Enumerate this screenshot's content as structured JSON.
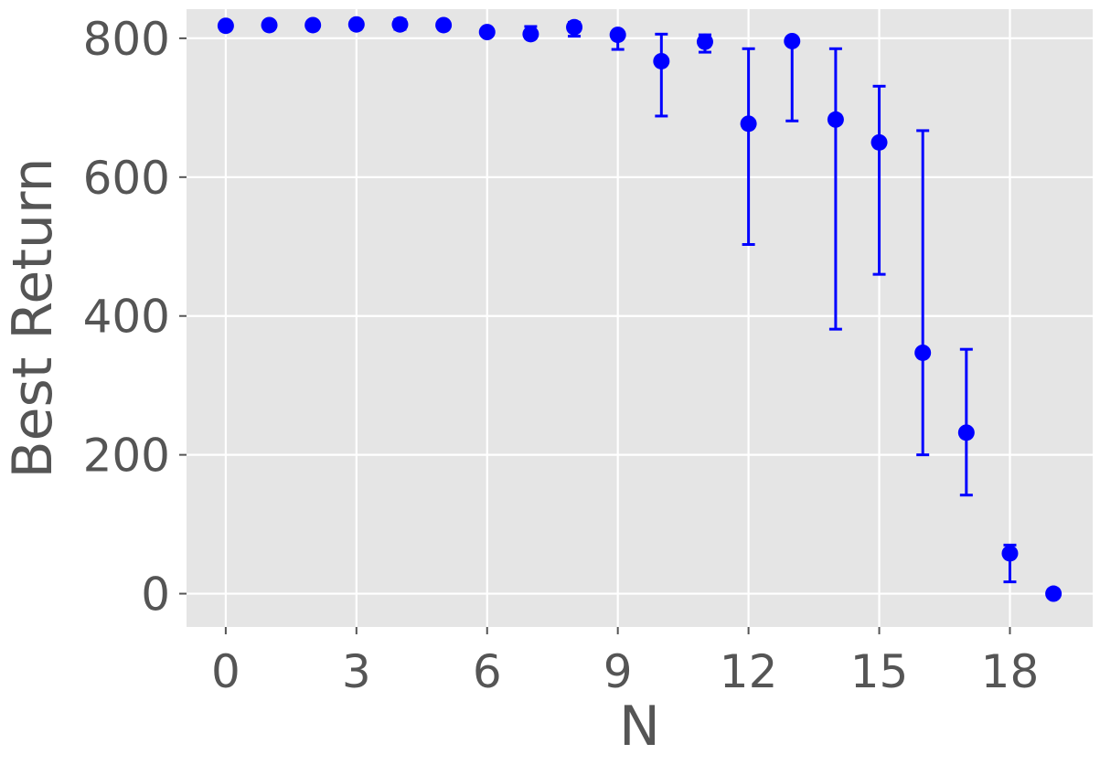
{
  "chart_data": {
    "type": "scatter",
    "title": "",
    "xlabel": "N",
    "ylabel": "Best Return",
    "xlim": [
      -0.9,
      19.9
    ],
    "ylim": [
      -48,
      842
    ],
    "xticks": [
      0,
      3,
      6,
      9,
      12,
      15,
      18
    ],
    "yticks": [
      0,
      200,
      400,
      600,
      800
    ],
    "grid": true,
    "background": "#e5e5e5",
    "grid_color": "#ffffff",
    "marker_color": "#0000ff",
    "series": [
      {
        "x": [
          0,
          1,
          2,
          3,
          4,
          5,
          6,
          7,
          8,
          9,
          10,
          11,
          12,
          13,
          14,
          15,
          16,
          17,
          18,
          19
        ],
        "y": [
          818,
          819,
          819,
          820,
          820,
          819,
          809,
          806,
          816,
          805,
          767,
          795,
          677,
          796,
          683,
          650,
          347,
          232,
          58,
          0
        ],
        "y_low": [
          818,
          819,
          817,
          816,
          813,
          819,
          809,
          803,
          803,
          784,
          688,
          780,
          503,
          681,
          381,
          460,
          200,
          142,
          17,
          0
        ],
        "y_high": [
          818,
          819,
          821,
          824,
          827,
          819,
          811,
          817,
          823,
          809,
          806,
          805,
          785,
          796,
          785,
          731,
          667,
          352,
          70,
          0
        ]
      }
    ]
  }
}
